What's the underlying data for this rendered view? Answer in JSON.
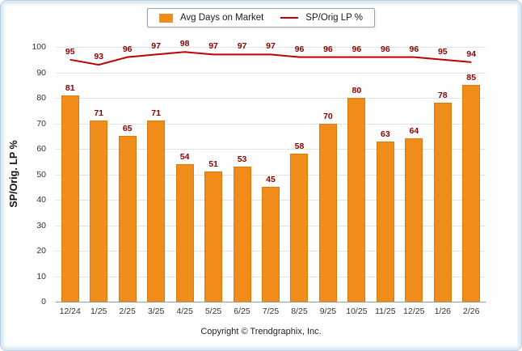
{
  "legend": {
    "bar_label": "Avg Days on Market",
    "line_label": "SP/Orig LP %"
  },
  "axes": {
    "y_title": "SP/Orig. LP %"
  },
  "footer": {
    "copyright": "Copyright © Trendgraphix, Inc."
  },
  "colors": {
    "bar": "#EF8C1A",
    "bar_border": "#D97B0E",
    "line": "#C00000",
    "value_label": "#8B0000",
    "grid": "#E3E3E3",
    "axis": "#999999",
    "tick_text": "#333333"
  },
  "chart_data": {
    "type": "bar",
    "combo": "bar+line",
    "title": "",
    "xlabel": "",
    "ylabel": "SP/Orig. LP %",
    "categories": [
      "12/24",
      "1/25",
      "2/25",
      "3/25",
      "4/25",
      "5/25",
      "6/25",
      "7/25",
      "8/25",
      "9/25",
      "10/25",
      "11/25",
      "12/25",
      "1/26",
      "2/26"
    ],
    "series": [
      {
        "name": "Avg Days on Market",
        "type": "bar",
        "values": [
          81,
          71,
          65,
          71,
          54,
          51,
          53,
          45,
          58,
          70,
          80,
          63,
          64,
          78,
          85
        ]
      },
      {
        "name": "SP/Orig LP %",
        "type": "line",
        "values": [
          95,
          93,
          96,
          97,
          98,
          97,
          97,
          97,
          96,
          96,
          96,
          96,
          96,
          95,
          94
        ]
      }
    ],
    "ylim": [
      0,
      100
    ],
    "yticks": [
      0,
      10,
      20,
      30,
      40,
      50,
      60,
      70,
      80,
      90,
      100
    ],
    "legend_position": "top",
    "grid": "horizontal"
  }
}
